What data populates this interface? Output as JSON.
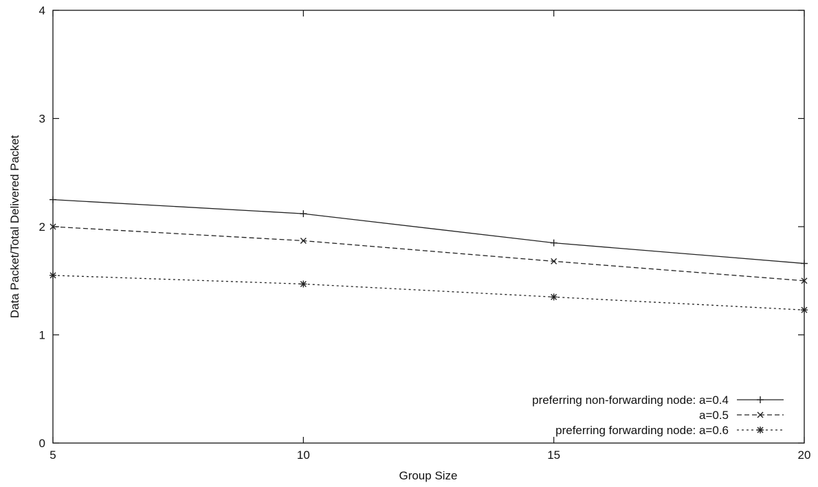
{
  "chart_data": {
    "type": "line",
    "title": "",
    "xlabel": "Group Size",
    "ylabel": "Data Packet/Total Delivered Packet",
    "xlim": [
      5,
      20
    ],
    "ylim": [
      0,
      4
    ],
    "x_ticks": [
      5,
      10,
      15,
      20
    ],
    "y_ticks": [
      0,
      1,
      2,
      3,
      4
    ],
    "grid": false,
    "legend_position": "bottom-right",
    "x": [
      5,
      10,
      15,
      20
    ],
    "series": [
      {
        "name": "preferring non-forwarding node: a=0.4",
        "values": [
          2.25,
          2.12,
          1.85,
          1.66
        ],
        "marker": "plus",
        "dash": "solid",
        "color": "#222222"
      },
      {
        "name": "a=0.5",
        "values": [
          2.0,
          1.87,
          1.68,
          1.5
        ],
        "marker": "x",
        "dash": "dashed",
        "color": "#222222"
      },
      {
        "name": "preferring forwarding node: a=0.6",
        "values": [
          1.55,
          1.47,
          1.35,
          1.23
        ],
        "marker": "star",
        "dash": "dotted",
        "color": "#222222"
      }
    ]
  }
}
